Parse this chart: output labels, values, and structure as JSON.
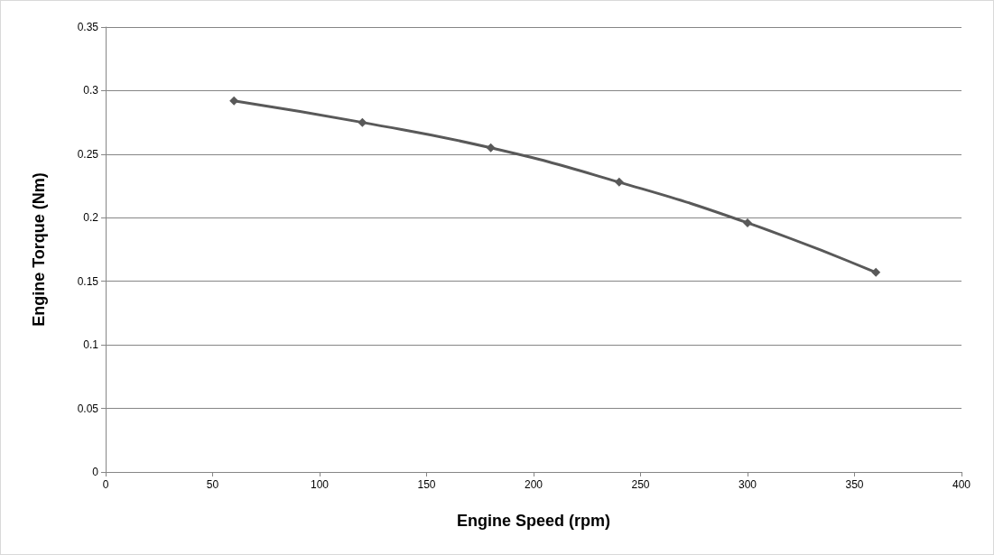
{
  "chart_data": {
    "type": "line",
    "xlabel": "Engine Speed (rpm)",
    "ylabel": "Engine Torque (Nm)",
    "x": [
      60,
      120,
      180,
      240,
      300,
      360
    ],
    "series": [
      {
        "color": "#595959",
        "values": [
          0.292,
          0.275,
          0.255,
          0.228,
          0.196,
          0.157
        ]
      }
    ],
    "xlim": [
      0,
      400
    ],
    "xticks": [
      0,
      50,
      100,
      150,
      200,
      250,
      300,
      350,
      400
    ],
    "ylim": [
      0,
      0.35
    ],
    "yticks": [
      0,
      0.05,
      0.1,
      0.15,
      0.2,
      0.25,
      0.3,
      0.35
    ],
    "grid": "y",
    "marker": "diamond",
    "line_style": "solid"
  }
}
